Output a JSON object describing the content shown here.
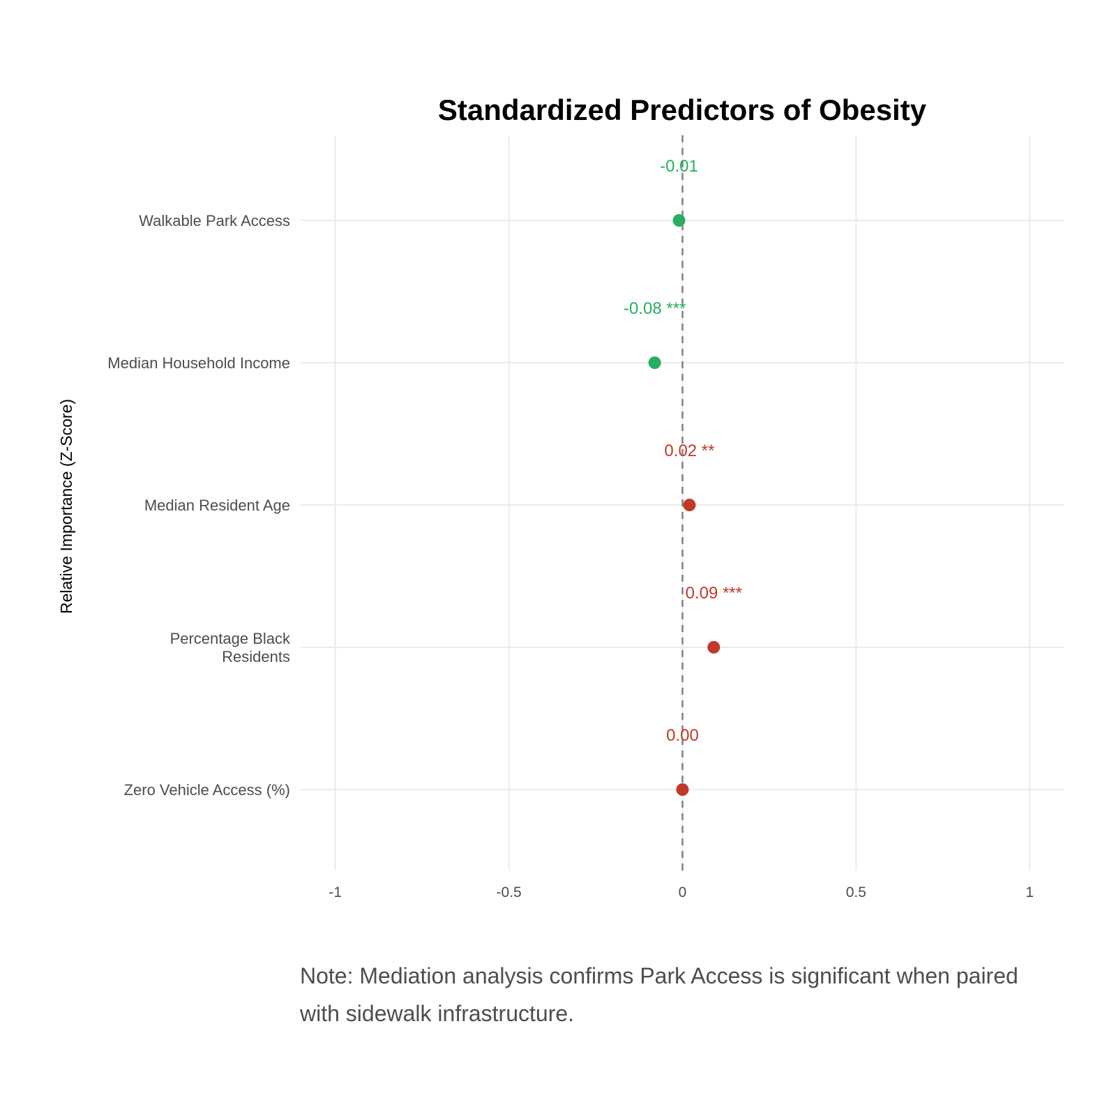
{
  "chart_data": {
    "type": "scatter",
    "title": "Standardized Predictors of Obesity",
    "ylabel": "Relative Importance (Z-Score)",
    "xlabel": "",
    "xlim": [
      -1.1,
      1.1
    ],
    "x_ticks": [
      -1,
      -0.5,
      0,
      0.5,
      1
    ],
    "x_tick_labels": [
      "-1",
      "-0.5",
      "0",
      "0.5",
      "1"
    ],
    "reference_line": 0,
    "grid": true,
    "points": [
      {
        "category": "Walkable Park Access",
        "category_lines": [
          "Walkable Park Access"
        ],
        "value": -0.01,
        "label": "-0.01",
        "color": "#27ae60"
      },
      {
        "category": "Median Household Income",
        "category_lines": [
          "Median Household Income"
        ],
        "value": -0.08,
        "label": "-0.08 ***",
        "color": "#27ae60"
      },
      {
        "category": "Median Resident Age",
        "category_lines": [
          "Median Resident Age"
        ],
        "value": 0.02,
        "label": "0.02 **",
        "color": "#c0392b"
      },
      {
        "category": "Percentage Black Residents",
        "category_lines": [
          "Percentage Black",
          "Residents"
        ],
        "value": 0.09,
        "label": "0.09 ***",
        "color": "#c0392b"
      },
      {
        "category": "Zero Vehicle Access (%)",
        "category_lines": [
          "Zero Vehicle Access (%)"
        ],
        "value": 0.0,
        "label": "0.00",
        "color": "#c0392b"
      }
    ]
  },
  "note": "Note: Mediation analysis confirms Park Access is significant when paired with sidewalk infrastructure."
}
